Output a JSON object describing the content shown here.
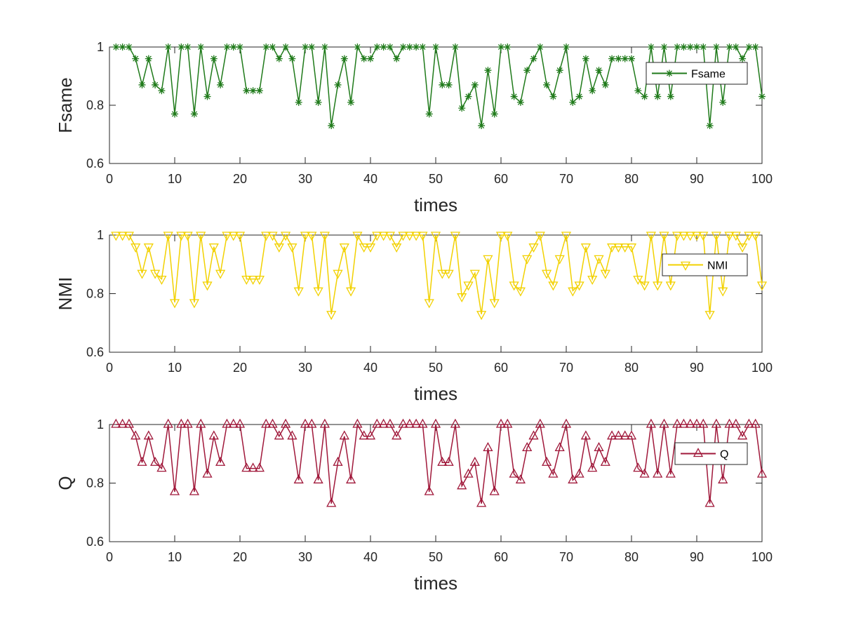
{
  "chart_data": [
    {
      "type": "line",
      "xlabel": "times",
      "ylabel": "Fsame",
      "xlim": [
        0,
        100
      ],
      "ylim": [
        0.6,
        1.0
      ],
      "xticks": [
        "0",
        "10",
        "20",
        "30",
        "40",
        "50",
        "60",
        "70",
        "80",
        "90",
        "100"
      ],
      "yticks": [
        "0.6",
        "0.8",
        "1"
      ],
      "grid": false,
      "legend_position": "upper-right",
      "marker": "asterisk",
      "color": "#1f7a1a",
      "series": [
        {
          "name": "Fsame",
          "x": [
            1,
            2,
            3,
            4,
            5,
            6,
            7,
            8,
            9,
            10,
            11,
            12,
            13,
            14,
            15,
            16,
            17,
            18,
            19,
            20,
            21,
            22,
            23,
            24,
            25,
            26,
            27,
            28,
            29,
            30,
            31,
            32,
            33,
            34,
            35,
            36,
            37,
            38,
            39,
            40,
            41,
            42,
            43,
            44,
            45,
            46,
            47,
            48,
            49,
            50,
            51,
            52,
            53,
            54,
            55,
            56,
            57,
            58,
            59,
            60,
            61,
            62,
            63,
            64,
            65,
            66,
            67,
            68,
            69,
            70,
            71,
            72,
            73,
            74,
            75,
            76,
            77,
            78,
            79,
            80,
            81,
            82,
            83,
            84,
            85,
            86,
            87,
            88,
            89,
            90,
            91,
            92,
            93,
            94,
            95,
            96,
            97,
            98,
            99,
            100
          ],
          "values": [
            1.0,
            1.0,
            1.0,
            0.96,
            0.87,
            0.96,
            0.87,
            0.85,
            1.0,
            0.77,
            1.0,
            1.0,
            0.77,
            1.0,
            0.83,
            0.96,
            0.87,
            1.0,
            1.0,
            1.0,
            0.85,
            0.85,
            0.85,
            1.0,
            1.0,
            0.96,
            1.0,
            0.96,
            0.81,
            1.0,
            1.0,
            0.81,
            1.0,
            0.73,
            0.87,
            0.96,
            0.81,
            1.0,
            0.96,
            0.96,
            1.0,
            1.0,
            1.0,
            0.96,
            1.0,
            1.0,
            1.0,
            1.0,
            0.77,
            1.0,
            0.87,
            0.87,
            1.0,
            0.79,
            0.83,
            0.87,
            0.73,
            0.92,
            0.77,
            1.0,
            1.0,
            0.83,
            0.81,
            0.92,
            0.96,
            1.0,
            0.87,
            0.83,
            0.92,
            1.0,
            0.81,
            0.83,
            0.96,
            0.85,
            0.92,
            0.87,
            0.96,
            0.96,
            0.96,
            0.96,
            0.85,
            0.83,
            1.0,
            0.83,
            1.0,
            0.83,
            1.0,
            1.0,
            1.0,
            1.0,
            1.0,
            0.73,
            1.0,
            0.81,
            1.0,
            1.0,
            0.96,
            1.0,
            1.0,
            0.83
          ]
        }
      ]
    },
    {
      "type": "line",
      "xlabel": "times",
      "ylabel": "NMI",
      "xlim": [
        0,
        100
      ],
      "ylim": [
        0.6,
        1.0
      ],
      "xticks": [
        "0",
        "10",
        "20",
        "30",
        "40",
        "50",
        "60",
        "70",
        "80",
        "90",
        "100"
      ],
      "yticks": [
        "0.6",
        "0.8",
        "1"
      ],
      "grid": false,
      "legend_position": "upper-right",
      "marker": "triangle-down",
      "color": "#f2d100",
      "series": [
        {
          "name": "NMI",
          "x": [
            1,
            2,
            3,
            4,
            5,
            6,
            7,
            8,
            9,
            10,
            11,
            12,
            13,
            14,
            15,
            16,
            17,
            18,
            19,
            20,
            21,
            22,
            23,
            24,
            25,
            26,
            27,
            28,
            29,
            30,
            31,
            32,
            33,
            34,
            35,
            36,
            37,
            38,
            39,
            40,
            41,
            42,
            43,
            44,
            45,
            46,
            47,
            48,
            49,
            50,
            51,
            52,
            53,
            54,
            55,
            56,
            57,
            58,
            59,
            60,
            61,
            62,
            63,
            64,
            65,
            66,
            67,
            68,
            69,
            70,
            71,
            72,
            73,
            74,
            75,
            76,
            77,
            78,
            79,
            80,
            81,
            82,
            83,
            84,
            85,
            86,
            87,
            88,
            89,
            90,
            91,
            92,
            93,
            94,
            95,
            96,
            97,
            98,
            99,
            100
          ],
          "values": [
            1.0,
            1.0,
            1.0,
            0.96,
            0.87,
            0.96,
            0.87,
            0.85,
            1.0,
            0.77,
            1.0,
            1.0,
            0.77,
            1.0,
            0.83,
            0.96,
            0.87,
            1.0,
            1.0,
            1.0,
            0.85,
            0.85,
            0.85,
            1.0,
            1.0,
            0.96,
            1.0,
            0.96,
            0.81,
            1.0,
            1.0,
            0.81,
            1.0,
            0.73,
            0.87,
            0.96,
            0.81,
            1.0,
            0.96,
            0.96,
            1.0,
            1.0,
            1.0,
            0.96,
            1.0,
            1.0,
            1.0,
            1.0,
            0.77,
            1.0,
            0.87,
            0.87,
            1.0,
            0.79,
            0.83,
            0.87,
            0.73,
            0.92,
            0.77,
            1.0,
            1.0,
            0.83,
            0.81,
            0.92,
            0.96,
            1.0,
            0.87,
            0.83,
            0.92,
            1.0,
            0.81,
            0.83,
            0.96,
            0.85,
            0.92,
            0.87,
            0.96,
            0.96,
            0.96,
            0.96,
            0.85,
            0.83,
            1.0,
            0.83,
            1.0,
            0.83,
            1.0,
            1.0,
            1.0,
            1.0,
            1.0,
            0.73,
            1.0,
            0.81,
            1.0,
            1.0,
            0.96,
            1.0,
            1.0,
            0.83
          ]
        }
      ]
    },
    {
      "type": "line",
      "xlabel": "times",
      "ylabel": "Q",
      "xlim": [
        0,
        100
      ],
      "ylim": [
        0.6,
        1.0
      ],
      "xticks": [
        "0",
        "10",
        "20",
        "30",
        "40",
        "50",
        "60",
        "70",
        "80",
        "90",
        "100"
      ],
      "yticks": [
        "0.6",
        "0.8",
        "1"
      ],
      "grid": false,
      "legend_position": "upper-right",
      "marker": "triangle-up",
      "color": "#a0183a",
      "series": [
        {
          "name": "Q",
          "x": [
            1,
            2,
            3,
            4,
            5,
            6,
            7,
            8,
            9,
            10,
            11,
            12,
            13,
            14,
            15,
            16,
            17,
            18,
            19,
            20,
            21,
            22,
            23,
            24,
            25,
            26,
            27,
            28,
            29,
            30,
            31,
            32,
            33,
            34,
            35,
            36,
            37,
            38,
            39,
            40,
            41,
            42,
            43,
            44,
            45,
            46,
            47,
            48,
            49,
            50,
            51,
            52,
            53,
            54,
            55,
            56,
            57,
            58,
            59,
            60,
            61,
            62,
            63,
            64,
            65,
            66,
            67,
            68,
            69,
            70,
            71,
            72,
            73,
            74,
            75,
            76,
            77,
            78,
            79,
            80,
            81,
            82,
            83,
            84,
            85,
            86,
            87,
            88,
            89,
            90,
            91,
            92,
            93,
            94,
            95,
            96,
            97,
            98,
            99,
            100
          ],
          "values": [
            1.0,
            1.0,
            1.0,
            0.96,
            0.87,
            0.96,
            0.87,
            0.85,
            1.0,
            0.77,
            1.0,
            1.0,
            0.77,
            1.0,
            0.83,
            0.96,
            0.87,
            1.0,
            1.0,
            1.0,
            0.85,
            0.85,
            0.85,
            1.0,
            1.0,
            0.96,
            1.0,
            0.96,
            0.81,
            1.0,
            1.0,
            0.81,
            1.0,
            0.73,
            0.87,
            0.96,
            0.81,
            1.0,
            0.96,
            0.96,
            1.0,
            1.0,
            1.0,
            0.96,
            1.0,
            1.0,
            1.0,
            1.0,
            0.77,
            1.0,
            0.87,
            0.87,
            1.0,
            0.79,
            0.83,
            0.87,
            0.73,
            0.92,
            0.77,
            1.0,
            1.0,
            0.83,
            0.81,
            0.92,
            0.96,
            1.0,
            0.87,
            0.83,
            0.92,
            1.0,
            0.81,
            0.83,
            0.96,
            0.85,
            0.92,
            0.87,
            0.96,
            0.96,
            0.96,
            0.96,
            0.85,
            0.83,
            1.0,
            0.83,
            1.0,
            0.83,
            1.0,
            1.0,
            1.0,
            1.0,
            1.0,
            0.73,
            1.0,
            0.81,
            1.0,
            1.0,
            0.96,
            1.0,
            1.0,
            0.83
          ]
        }
      ]
    }
  ]
}
